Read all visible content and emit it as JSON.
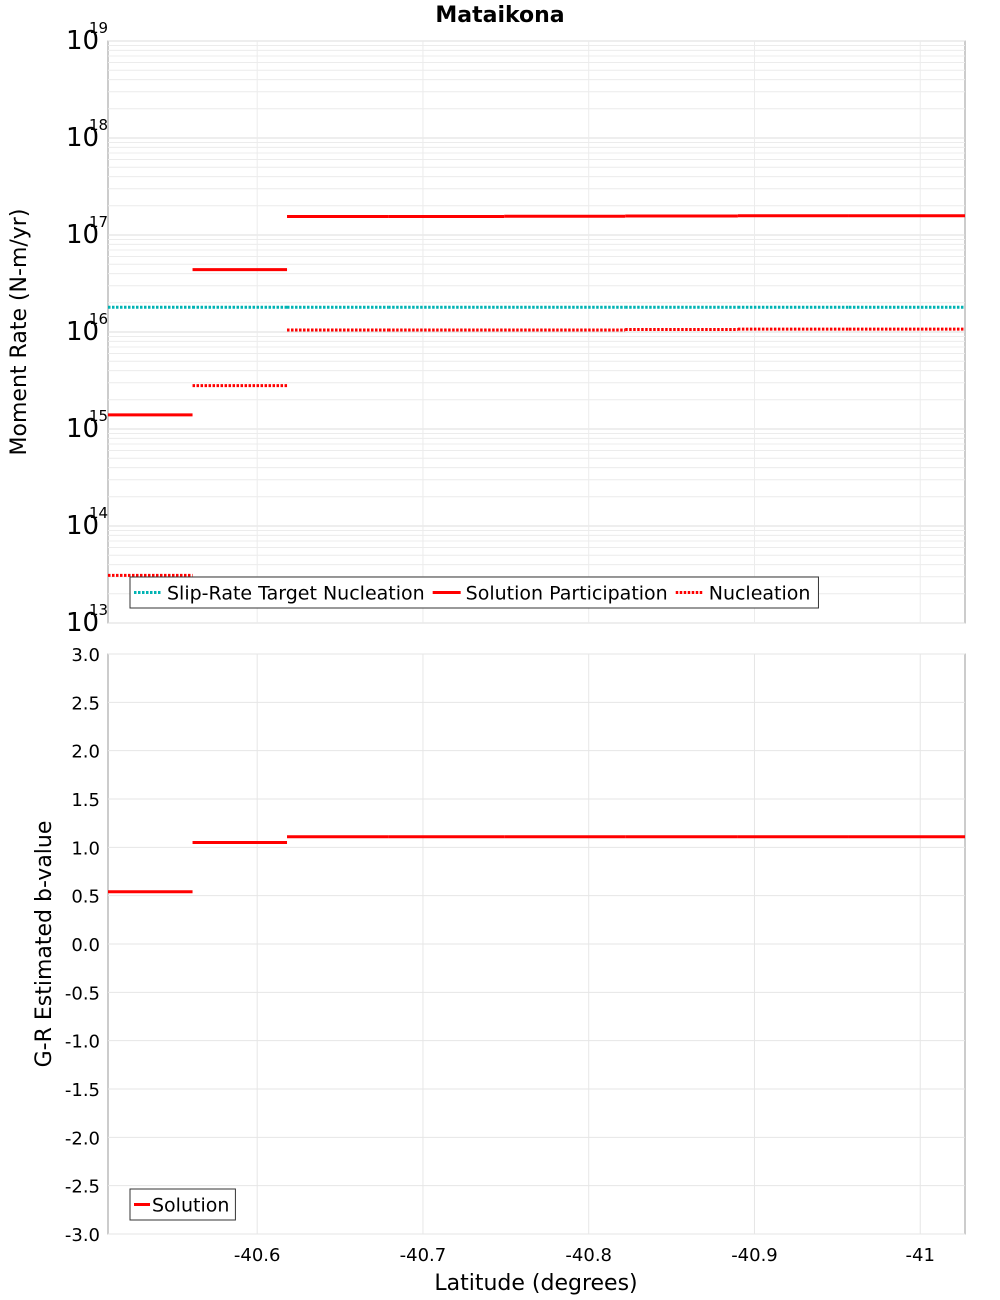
{
  "chart_data": [
    {
      "type": "line",
      "title": "Mataikona",
      "ylabel": "Moment Rate (N-m/yr)",
      "yscale": "log",
      "ylim": [
        10000000000000.0,
        1e+19
      ],
      "y_tick_labels": [
        {
          "base": "10",
          "exp": "13",
          "value": 10000000000000.0
        },
        {
          "base": "10",
          "exp": "14",
          "value": 100000000000000.0
        },
        {
          "base": "10",
          "exp": "15",
          "value": 1000000000000000.0
        },
        {
          "base": "10",
          "exp": "16",
          "value": 1e+16
        },
        {
          "base": "10",
          "exp": "17",
          "value": 1e+17
        },
        {
          "base": "10",
          "exp": "18",
          "value": 1e+18
        },
        {
          "base": "10",
          "exp": "19",
          "value": 1e+19
        }
      ],
      "xlim": [
        -40.51,
        -41.027
      ],
      "grid": true,
      "legend_position": "bottom-left",
      "series": [
        {
          "name": "Slip-Rate Target Nucleation",
          "color": "#00b3b3",
          "style": "dotted",
          "segments": [
            {
              "x0": -40.51,
              "x1": -40.561,
              "y": 1.8e+16
            },
            {
              "x0": -40.561,
              "x1": -40.618,
              "y": 1.8e+16
            },
            {
              "x0": -40.618,
              "x1": -40.679,
              "y": 1.8e+16
            },
            {
              "x0": -40.679,
              "x1": -40.749,
              "y": 1.8e+16
            },
            {
              "x0": -40.749,
              "x1": -40.822,
              "y": 1.8e+16
            },
            {
              "x0": -40.822,
              "x1": -40.89,
              "y": 1.8e+16
            },
            {
              "x0": -40.89,
              "x1": -40.957,
              "y": 1.8e+16
            },
            {
              "x0": -40.957,
              "x1": -41.027,
              "y": 1.8e+16
            }
          ]
        },
        {
          "name": "Solution Participation",
          "color": "#ff0000",
          "style": "solid",
          "segments": [
            {
              "x0": -40.51,
              "x1": -40.561,
              "y": 1400000000000000.0
            },
            {
              "x0": -40.561,
              "x1": -40.618,
              "y": 4.4e+16
            },
            {
              "x0": -40.618,
              "x1": -40.679,
              "y": 1.55e+17
            },
            {
              "x0": -40.679,
              "x1": -40.749,
              "y": 1.55e+17
            },
            {
              "x0": -40.749,
              "x1": -40.822,
              "y": 1.56e+17
            },
            {
              "x0": -40.822,
              "x1": -40.89,
              "y": 1.57e+17
            },
            {
              "x0": -40.89,
              "x1": -40.957,
              "y": 1.58e+17
            },
            {
              "x0": -40.957,
              "x1": -41.027,
              "y": 1.58e+17
            }
          ]
        },
        {
          "name": "Nucleation",
          "color": "#ff0000",
          "style": "dotted",
          "segments": [
            {
              "x0": -40.51,
              "x1": -40.561,
              "y": 31000000000000.0
            },
            {
              "x0": -40.561,
              "x1": -40.618,
              "y": 2800000000000000.0
            },
            {
              "x0": -40.618,
              "x1": -40.679,
              "y": 1.05e+16
            },
            {
              "x0": -40.679,
              "x1": -40.749,
              "y": 1.05e+16
            },
            {
              "x0": -40.749,
              "x1": -40.822,
              "y": 1.05e+16
            },
            {
              "x0": -40.822,
              "x1": -40.89,
              "y": 1.06e+16
            },
            {
              "x0": -40.89,
              "x1": -40.957,
              "y": 1.07e+16
            },
            {
              "x0": -40.957,
              "x1": -41.027,
              "y": 1.07e+16
            }
          ]
        }
      ]
    },
    {
      "type": "line",
      "xlabel": "Latitude (degrees)",
      "ylabel": "G-R Estimated b-value",
      "ylim": [
        -3.0,
        3.0
      ],
      "y_ticks": [
        3.0,
        2.5,
        2.0,
        1.5,
        1.0,
        0.5,
        0.0,
        -0.5,
        -1.0,
        -1.5,
        -2.0,
        -2.5,
        -3.0
      ],
      "y_tick_labels": [
        "3.0",
        "2.5",
        "2.0",
        "1.5",
        "1.0",
        "0.5",
        "0.0",
        "-0.5",
        "-1.0",
        "-1.5",
        "-2.0",
        "-2.5",
        "-3.0"
      ],
      "xlim": [
        -40.51,
        -41.027
      ],
      "x_ticks": [
        -40.6,
        -40.7,
        -40.8,
        -40.9,
        -41.0
      ],
      "x_tick_labels": [
        "-40.6",
        "-40.7",
        "-40.8",
        "-40.9",
        "-41"
      ],
      "grid": true,
      "legend_position": "bottom-left",
      "series": [
        {
          "name": "Solution",
          "color": "#ff0000",
          "style": "solid",
          "segments": [
            {
              "x0": -40.51,
              "x1": -40.561,
              "y": 0.54
            },
            {
              "x0": -40.561,
              "x1": -40.618,
              "y": 1.05
            },
            {
              "x0": -40.618,
              "x1": -40.679,
              "y": 1.11
            },
            {
              "x0": -40.679,
              "x1": -40.749,
              "y": 1.11
            },
            {
              "x0": -40.749,
              "x1": -40.822,
              "y": 1.11
            },
            {
              "x0": -40.822,
              "x1": -40.89,
              "y": 1.11
            },
            {
              "x0": -40.89,
              "x1": -40.957,
              "y": 1.11
            },
            {
              "x0": -40.957,
              "x1": -41.027,
              "y": 1.11
            }
          ]
        }
      ]
    }
  ]
}
